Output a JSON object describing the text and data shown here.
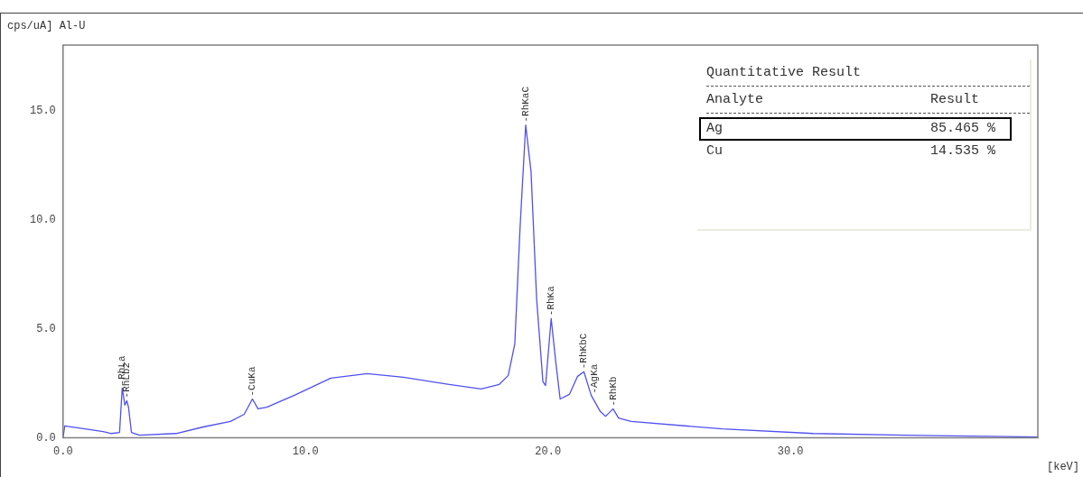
{
  "chart_data": {
    "type": "line",
    "title": "Al-U",
    "ylabel": "cps/uA]",
    "xlabel": "[keV]",
    "xlim": [
      0,
      40.2
    ],
    "ylim": [
      0,
      18
    ],
    "xticks": [
      {
        "value": 0,
        "label": "0.0"
      },
      {
        "value": 10,
        "label": "10.0"
      },
      {
        "value": 20,
        "label": "20.0"
      },
      {
        "value": 30,
        "label": "30.0"
      }
    ],
    "yticks": [
      {
        "value": 0,
        "label": "0.0"
      },
      {
        "value": 5,
        "label": "5.0"
      },
      {
        "value": 10,
        "label": "10.0"
      },
      {
        "value": 15,
        "label": "15.0"
      }
    ],
    "grid": false,
    "legend": false,
    "marker": "none",
    "line_style": "solid",
    "series": [
      {
        "color": "#5050f0",
        "x": [
          0,
          0.07,
          0.9,
          1.65,
          2.0,
          2.33,
          2.44,
          2.55,
          2.63,
          2.7,
          2.82,
          3.15,
          4.66,
          5.78,
          6.9,
          7.47,
          7.81,
          8.04,
          8.4,
          9.54,
          11.04,
          12.54,
          14.04,
          15.92,
          17.24,
          17.99,
          18.36,
          18.63,
          18.85,
          19.08,
          19.3,
          19.53,
          19.79,
          19.9,
          20.13,
          20.32,
          20.5,
          20.88,
          21.22,
          21.48,
          21.78,
          22.16,
          22.38,
          22.68,
          22.91,
          23.43,
          27.19,
          30.94,
          34.7,
          40.2
        ],
        "values": [
          0,
          0.55,
          0.41,
          0.29,
          0.2,
          0.25,
          2.28,
          1.5,
          1.7,
          1.4,
          0.25,
          0.12,
          0.2,
          0.5,
          0.75,
          1.08,
          1.78,
          1.33,
          1.4,
          1.95,
          2.74,
          2.94,
          2.78,
          2.45,
          2.24,
          2.45,
          2.86,
          4.31,
          9.7,
          14.34,
          12.2,
          6.38,
          2.57,
          2.4,
          5.47,
          3.48,
          1.78,
          1.99,
          2.82,
          3.03,
          1.95,
          1.2,
          0.99,
          1.33,
          0.91,
          0.75,
          0.41,
          0.2,
          0.12,
          0.04
        ]
      }
    ],
    "annotations": [
      {
        "text": "-RhLa",
        "x": 2.44,
        "y": 2.28
      },
      {
        "text": "-RhLb2",
        "x": 2.63,
        "y": 1.7
      },
      {
        "text": "-CuKa",
        "x": 7.81,
        "y": 1.78
      },
      {
        "text": "-RhKaC",
        "x": 19.08,
        "y": 14.34
      },
      {
        "text": "-RhKa",
        "x": 20.13,
        "y": 5.47
      },
      {
        "text": "-RhKbC",
        "x": 21.48,
        "y": 3.03
      },
      {
        "text": "-AgKa",
        "x": 21.9,
        "y": 1.9
      },
      {
        "text": "-RhKb",
        "x": 22.68,
        "y": 1.33
      },
      "Quantitative Result",
      "Analyte",
      "Result",
      "Ag",
      "85.465 %",
      "Cu",
      "14.535 %"
    ]
  }
}
